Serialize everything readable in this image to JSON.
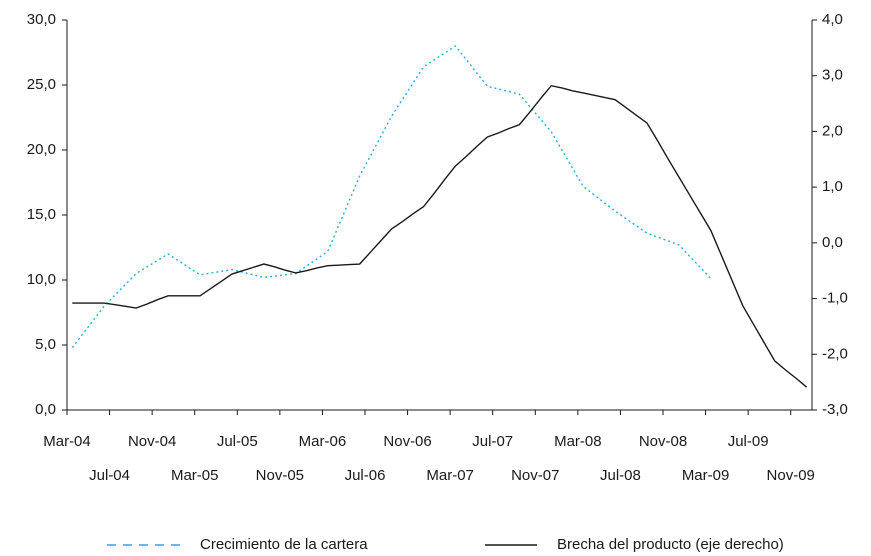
{
  "chart_data": {
    "type": "line",
    "categories": [
      "Mar-04",
      null,
      null,
      null,
      "Jul-04",
      null,
      null,
      null,
      "Nov-04",
      null,
      null,
      null,
      "Mar-05",
      null,
      null,
      null,
      "Jul-05",
      null,
      null,
      null,
      "Nov-05",
      null,
      null,
      null,
      "Mar-06",
      null,
      null,
      null,
      "Jul-06",
      null,
      null,
      null,
      "Nov-06",
      null,
      null,
      null,
      "Mar-07",
      null,
      null,
      null,
      "Jul-07",
      null,
      null,
      null,
      "Nov-07",
      null,
      null,
      null,
      "Mar-08",
      null,
      null,
      null,
      "Jul-08",
      null,
      null,
      null,
      "Nov-08",
      null,
      null,
      null,
      "Mar-09",
      null,
      null,
      null,
      "Jul-09",
      null,
      null,
      null,
      "Nov-09",
      null
    ],
    "series": [
      {
        "name": "Crecimiento de la cartera",
        "color": "#29abe2",
        "dash": true,
        "values": [
          4.8,
          5.87,
          6.93,
          8.0,
          8.83,
          9.67,
          10.5,
          11.0,
          11.5,
          12.0,
          11.47,
          10.93,
          10.4,
          10.53,
          10.67,
          10.8,
          10.6,
          10.4,
          10.2,
          10.3,
          10.4,
          10.5,
          11.07,
          11.63,
          12.2,
          14.13,
          16.07,
          18.0,
          19.53,
          21.07,
          22.6,
          23.87,
          25.13,
          26.4,
          26.93,
          27.47,
          28.0,
          26.97,
          25.93,
          24.9,
          24.7,
          24.5,
          24.3,
          23.33,
          22.37,
          21.4,
          20.0,
          18.6,
          17.2,
          16.57,
          15.93,
          15.3,
          14.73,
          14.17,
          13.6,
          13.3,
          13.0,
          12.7,
          11.83,
          10.97,
          10.1,
          null,
          null,
          null,
          null,
          null,
          null,
          null,
          null,
          null
        ]
      },
      {
        "name": "Brecha del producto (eje derecho)",
        "color": "#1a1a1a",
        "dash": false,
        "axis": "y2",
        "values": [
          -1.08,
          -1.08,
          -1.08,
          -1.08,
          -1.11,
          -1.14,
          -1.17,
          -1.1,
          -1.02,
          -0.95,
          -0.95,
          -0.95,
          -0.95,
          -0.82,
          -0.69,
          -0.56,
          -0.5,
          -0.44,
          -0.38,
          -0.43,
          -0.49,
          -0.54,
          -0.5,
          -0.45,
          -0.41,
          -0.4,
          -0.39,
          -0.38,
          -0.17,
          0.04,
          0.25,
          0.38,
          0.52,
          0.65,
          0.89,
          1.14,
          1.38,
          1.55,
          1.73,
          1.9,
          1.97,
          2.05,
          2.12,
          2.35,
          2.59,
          2.82,
          2.78,
          2.73,
          2.69,
          2.65,
          2.61,
          2.57,
          2.43,
          2.29,
          2.15,
          1.83,
          1.5,
          1.18,
          0.86,
          0.54,
          0.22,
          -0.23,
          -0.68,
          -1.13,
          -1.46,
          -1.79,
          -2.12,
          -2.28,
          -2.43,
          -2.59
        ]
      }
    ],
    "ylim": [
      0,
      30
    ],
    "yticks": [
      {
        "value": 0,
        "label": "0,0"
      },
      {
        "value": 5,
        "label": "5,0"
      },
      {
        "value": 10,
        "label": "10,0"
      },
      {
        "value": 15,
        "label": "15,0"
      },
      {
        "value": 20,
        "label": "20,0"
      },
      {
        "value": 25,
        "label": "25,0"
      },
      {
        "value": 30,
        "label": "30,0"
      }
    ],
    "y2lim": [
      -3,
      4
    ],
    "y2ticks": [
      {
        "value": -3,
        "label": "-3,0"
      },
      {
        "value": -2,
        "label": "-2,0"
      },
      {
        "value": -1,
        "label": "-1,0"
      },
      {
        "value": 0,
        "label": "0,0"
      },
      {
        "value": 1,
        "label": "1,0"
      },
      {
        "value": 2,
        "label": "2,0"
      },
      {
        "value": 3,
        "label": "3,0"
      },
      {
        "value": 4,
        "label": "4,0"
      }
    ],
    "legend": "bottom",
    "grid": false
  }
}
